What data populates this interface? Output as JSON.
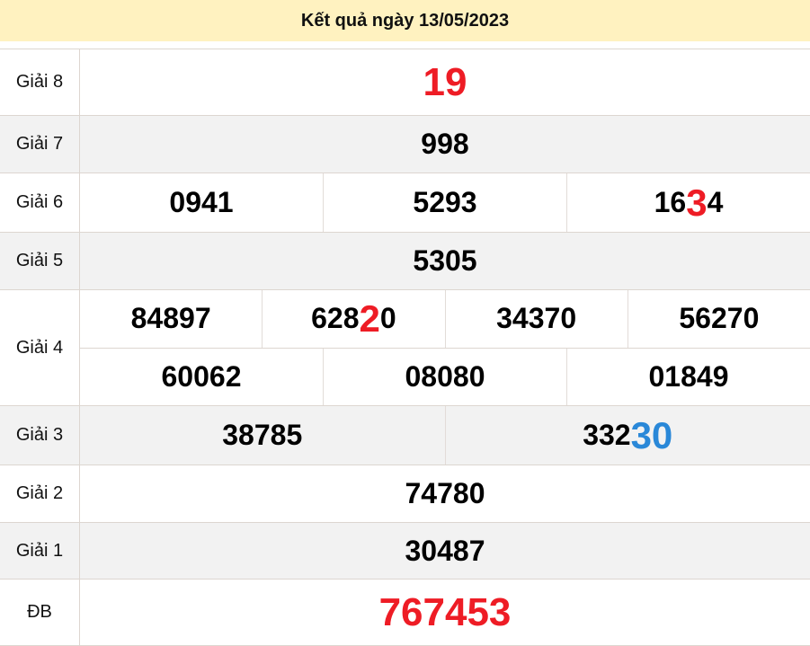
{
  "header": {
    "title": "Kết quả ngày 13/05/2023"
  },
  "colors": {
    "red": "#ee1c25",
    "blue": "#2a88d8",
    "header_bg": "#fff2c0"
  },
  "rows": [
    {
      "label": "Giải 8",
      "big": true,
      "lines": [
        [
          [
            {
              "t": "19",
              "c": "red"
            }
          ]
        ]
      ]
    },
    {
      "label": "Giải 7",
      "lines": [
        [
          [
            {
              "t": "998"
            }
          ]
        ]
      ]
    },
    {
      "label": "Giải 6",
      "lines": [
        [
          [
            {
              "t": "0941"
            }
          ],
          [
            {
              "t": "5293"
            }
          ],
          [
            {
              "t": "16"
            },
            {
              "t": "3",
              "c": "red"
            },
            {
              "t": "4"
            }
          ]
        ]
      ]
    },
    {
      "label": "Giải 5",
      "lines": [
        [
          [
            {
              "t": "5305"
            }
          ]
        ]
      ]
    },
    {
      "label": "Giải 4",
      "lines": [
        [
          [
            {
              "t": "84897"
            }
          ],
          [
            {
              "t": "628"
            },
            {
              "t": "2",
              "c": "red"
            },
            {
              "t": "0"
            }
          ],
          [
            {
              "t": "34370"
            }
          ],
          [
            {
              "t": "56270"
            }
          ]
        ],
        [
          [
            {
              "t": "60062"
            }
          ],
          [
            {
              "t": "08080"
            }
          ],
          [
            {
              "t": "01849"
            }
          ]
        ]
      ]
    },
    {
      "label": "Giải 3",
      "lines": [
        [
          [
            {
              "t": "38785"
            }
          ],
          [
            {
              "t": "332"
            },
            {
              "t": "30",
              "c": "blue"
            }
          ]
        ]
      ]
    },
    {
      "label": "Giải 2",
      "lines": [
        [
          [
            {
              "t": "74780"
            }
          ]
        ]
      ]
    },
    {
      "label": "Giải 1",
      "lines": [
        [
          [
            {
              "t": "30487"
            }
          ]
        ]
      ]
    },
    {
      "label": "ĐB",
      "big": true,
      "lines": [
        [
          [
            {
              "t": "767453",
              "c": "red"
            }
          ]
        ]
      ]
    }
  ]
}
